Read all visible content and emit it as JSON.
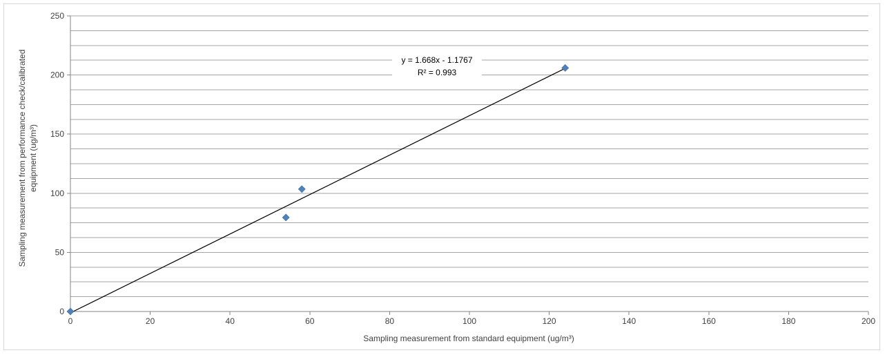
{
  "chart_data": {
    "type": "scatter",
    "xlabel": "Sampling measurement from standard equipment  (ug/m³)",
    "ylabel_line1": "Sampling measurement from performance check/calibrated",
    "ylabel_line2": "equipment (ug/m³)",
    "xlim": [
      0,
      200
    ],
    "ylim": [
      0,
      250
    ],
    "x_ticks": [
      "0",
      "20",
      "40",
      "60",
      "80",
      "100",
      "120",
      "140",
      "160",
      "180",
      "200"
    ],
    "y_ticks": [
      "0",
      "50",
      "100",
      "150",
      "200",
      "250"
    ],
    "grid": true,
    "minor_grid_step": 12.5,
    "legend": "none",
    "marker_color": "#4f81bd",
    "series": [
      {
        "points": [
          {
            "x": 0,
            "y": 0
          },
          {
            "x": 54,
            "y": 79.5
          },
          {
            "x": 58,
            "y": 103.5
          },
          {
            "x": 124,
            "y": 206
          }
        ]
      }
    ],
    "trendline": {
      "type": "linear",
      "slope": 1.668,
      "intercept": -1.1767,
      "x_range": [
        0,
        124
      ],
      "equation_label": "y = 1.668x - 1.1767",
      "r2_label": "R² = 0.993"
    }
  }
}
